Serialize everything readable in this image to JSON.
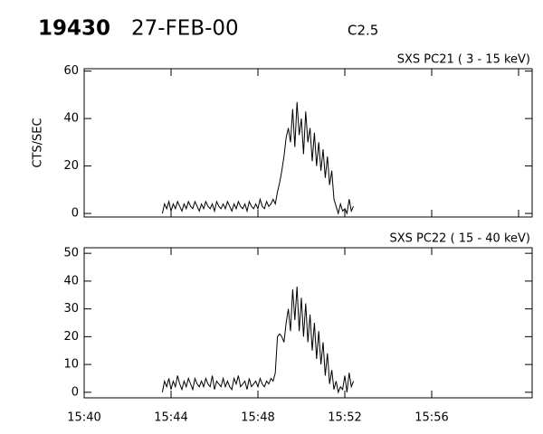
{
  "header": {
    "id": "19430",
    "date": "27-FEB-00",
    "flare_class": "C2.5"
  },
  "chart_data": [
    {
      "type": "line",
      "title": "SXS PC21  (  3 - 15 keV)",
      "ylabel": "CTS/SEC",
      "x": [
        3.6,
        3.7,
        3.8,
        3.9,
        4.0,
        4.1,
        4.2,
        4.3,
        4.4,
        4.5,
        4.6,
        4.7,
        4.8,
        4.9,
        5.0,
        5.1,
        5.2,
        5.3,
        5.4,
        5.5,
        5.6,
        5.7,
        5.8,
        5.9,
        6.0,
        6.1,
        6.2,
        6.3,
        6.4,
        6.5,
        6.6,
        6.7,
        6.8,
        6.9,
        7.0,
        7.1,
        7.2,
        7.3,
        7.4,
        7.5,
        7.6,
        7.7,
        7.8,
        7.9,
        8.0,
        8.1,
        8.2,
        8.3,
        8.4,
        8.5,
        8.6,
        8.7,
        8.8,
        8.9,
        9.0,
        9.1,
        9.2,
        9.3,
        9.4,
        9.5,
        9.6,
        9.7,
        9.8,
        9.9,
        10.0,
        10.1,
        10.2,
        10.3,
        10.4,
        10.5,
        10.6,
        10.7,
        10.8,
        10.9,
        11.0,
        11.1,
        11.2,
        11.3,
        11.4,
        11.5,
        11.6,
        11.7,
        11.8,
        11.9,
        12.0,
        12.1,
        12.2,
        12.3,
        12.4
      ],
      "series": [
        {
          "color": "#000000",
          "values": [
            0,
            4,
            2,
            5,
            1,
            4,
            2,
            5,
            3,
            1,
            4,
            2,
            5,
            3,
            2,
            5,
            3,
            1,
            4,
            2,
            5,
            3,
            2,
            4,
            1,
            5,
            3,
            2,
            4,
            2,
            5,
            3,
            1,
            4,
            2,
            5,
            3,
            2,
            4,
            1,
            5,
            3,
            2,
            4,
            2,
            6,
            3,
            2,
            5,
            3,
            4,
            6,
            4,
            9,
            13,
            18,
            24,
            32,
            36,
            30,
            44,
            28,
            47,
            33,
            40,
            25,
            43,
            30,
            36,
            22,
            34,
            20,
            30,
            18,
            27,
            15,
            24,
            12,
            18,
            6,
            3,
            0,
            4,
            1,
            2,
            0,
            6,
            1,
            3
          ]
        }
      ],
      "xlim": [
        0,
        20.625
      ],
      "xticks": [
        0,
        4,
        8,
        12,
        16,
        20
      ],
      "ylim": [
        -1.5,
        61
      ],
      "yticks": [
        0,
        20,
        40,
        60
      ]
    },
    {
      "type": "line",
      "title": "SXS PC22  ( 15 - 40 keV)",
      "x": [
        3.6,
        3.7,
        3.8,
        3.9,
        4.0,
        4.1,
        4.2,
        4.3,
        4.4,
        4.5,
        4.6,
        4.7,
        4.8,
        4.9,
        5.0,
        5.1,
        5.2,
        5.3,
        5.4,
        5.5,
        5.6,
        5.7,
        5.8,
        5.9,
        6.0,
        6.1,
        6.2,
        6.3,
        6.4,
        6.5,
        6.6,
        6.7,
        6.8,
        6.9,
        7.0,
        7.1,
        7.2,
        7.3,
        7.4,
        7.5,
        7.6,
        7.7,
        7.8,
        7.9,
        8.0,
        8.1,
        8.2,
        8.3,
        8.4,
        8.5,
        8.6,
        8.7,
        8.8,
        8.9,
        9.0,
        9.1,
        9.2,
        9.3,
        9.4,
        9.5,
        9.6,
        9.7,
        9.8,
        9.9,
        10.0,
        10.1,
        10.2,
        10.3,
        10.4,
        10.5,
        10.6,
        10.7,
        10.8,
        10.9,
        11.0,
        11.1,
        11.2,
        11.3,
        11.4,
        11.5,
        11.6,
        11.7,
        11.8,
        11.9,
        12.0,
        12.1,
        12.2,
        12.3,
        12.4
      ],
      "series": [
        {
          "color": "#000000",
          "values": [
            0,
            4,
            2,
            5,
            1,
            4,
            2,
            6,
            3,
            1,
            4,
            2,
            5,
            3,
            1,
            5,
            3,
            2,
            4,
            2,
            5,
            3,
            2,
            6,
            1,
            4,
            3,
            2,
            5,
            2,
            4,
            2,
            1,
            5,
            3,
            6,
            2,
            3,
            4,
            1,
            5,
            2,
            3,
            4,
            2,
            5,
            3,
            2,
            4,
            3,
            5,
            4,
            7,
            20,
            21,
            20,
            18,
            25,
            30,
            22,
            37,
            26,
            38,
            22,
            34,
            20,
            32,
            18,
            28,
            15,
            25,
            12,
            22,
            10,
            18,
            6,
            14,
            3,
            8,
            1,
            4,
            0,
            2,
            1,
            6,
            0,
            7,
            2,
            4
          ]
        }
      ],
      "xlim": [
        0,
        20.625
      ],
      "xticks": [
        {
          "value": 0,
          "label": "15:40"
        },
        {
          "value": 4,
          "label": "15:44"
        },
        {
          "value": 8,
          "label": "15:48"
        },
        {
          "value": 12,
          "label": "15:52"
        },
        {
          "value": 16,
          "label": "15:56"
        }
      ],
      "ylim": [
        -2,
        52
      ],
      "yticks": [
        0,
        10,
        20,
        30,
        40,
        50
      ]
    }
  ]
}
